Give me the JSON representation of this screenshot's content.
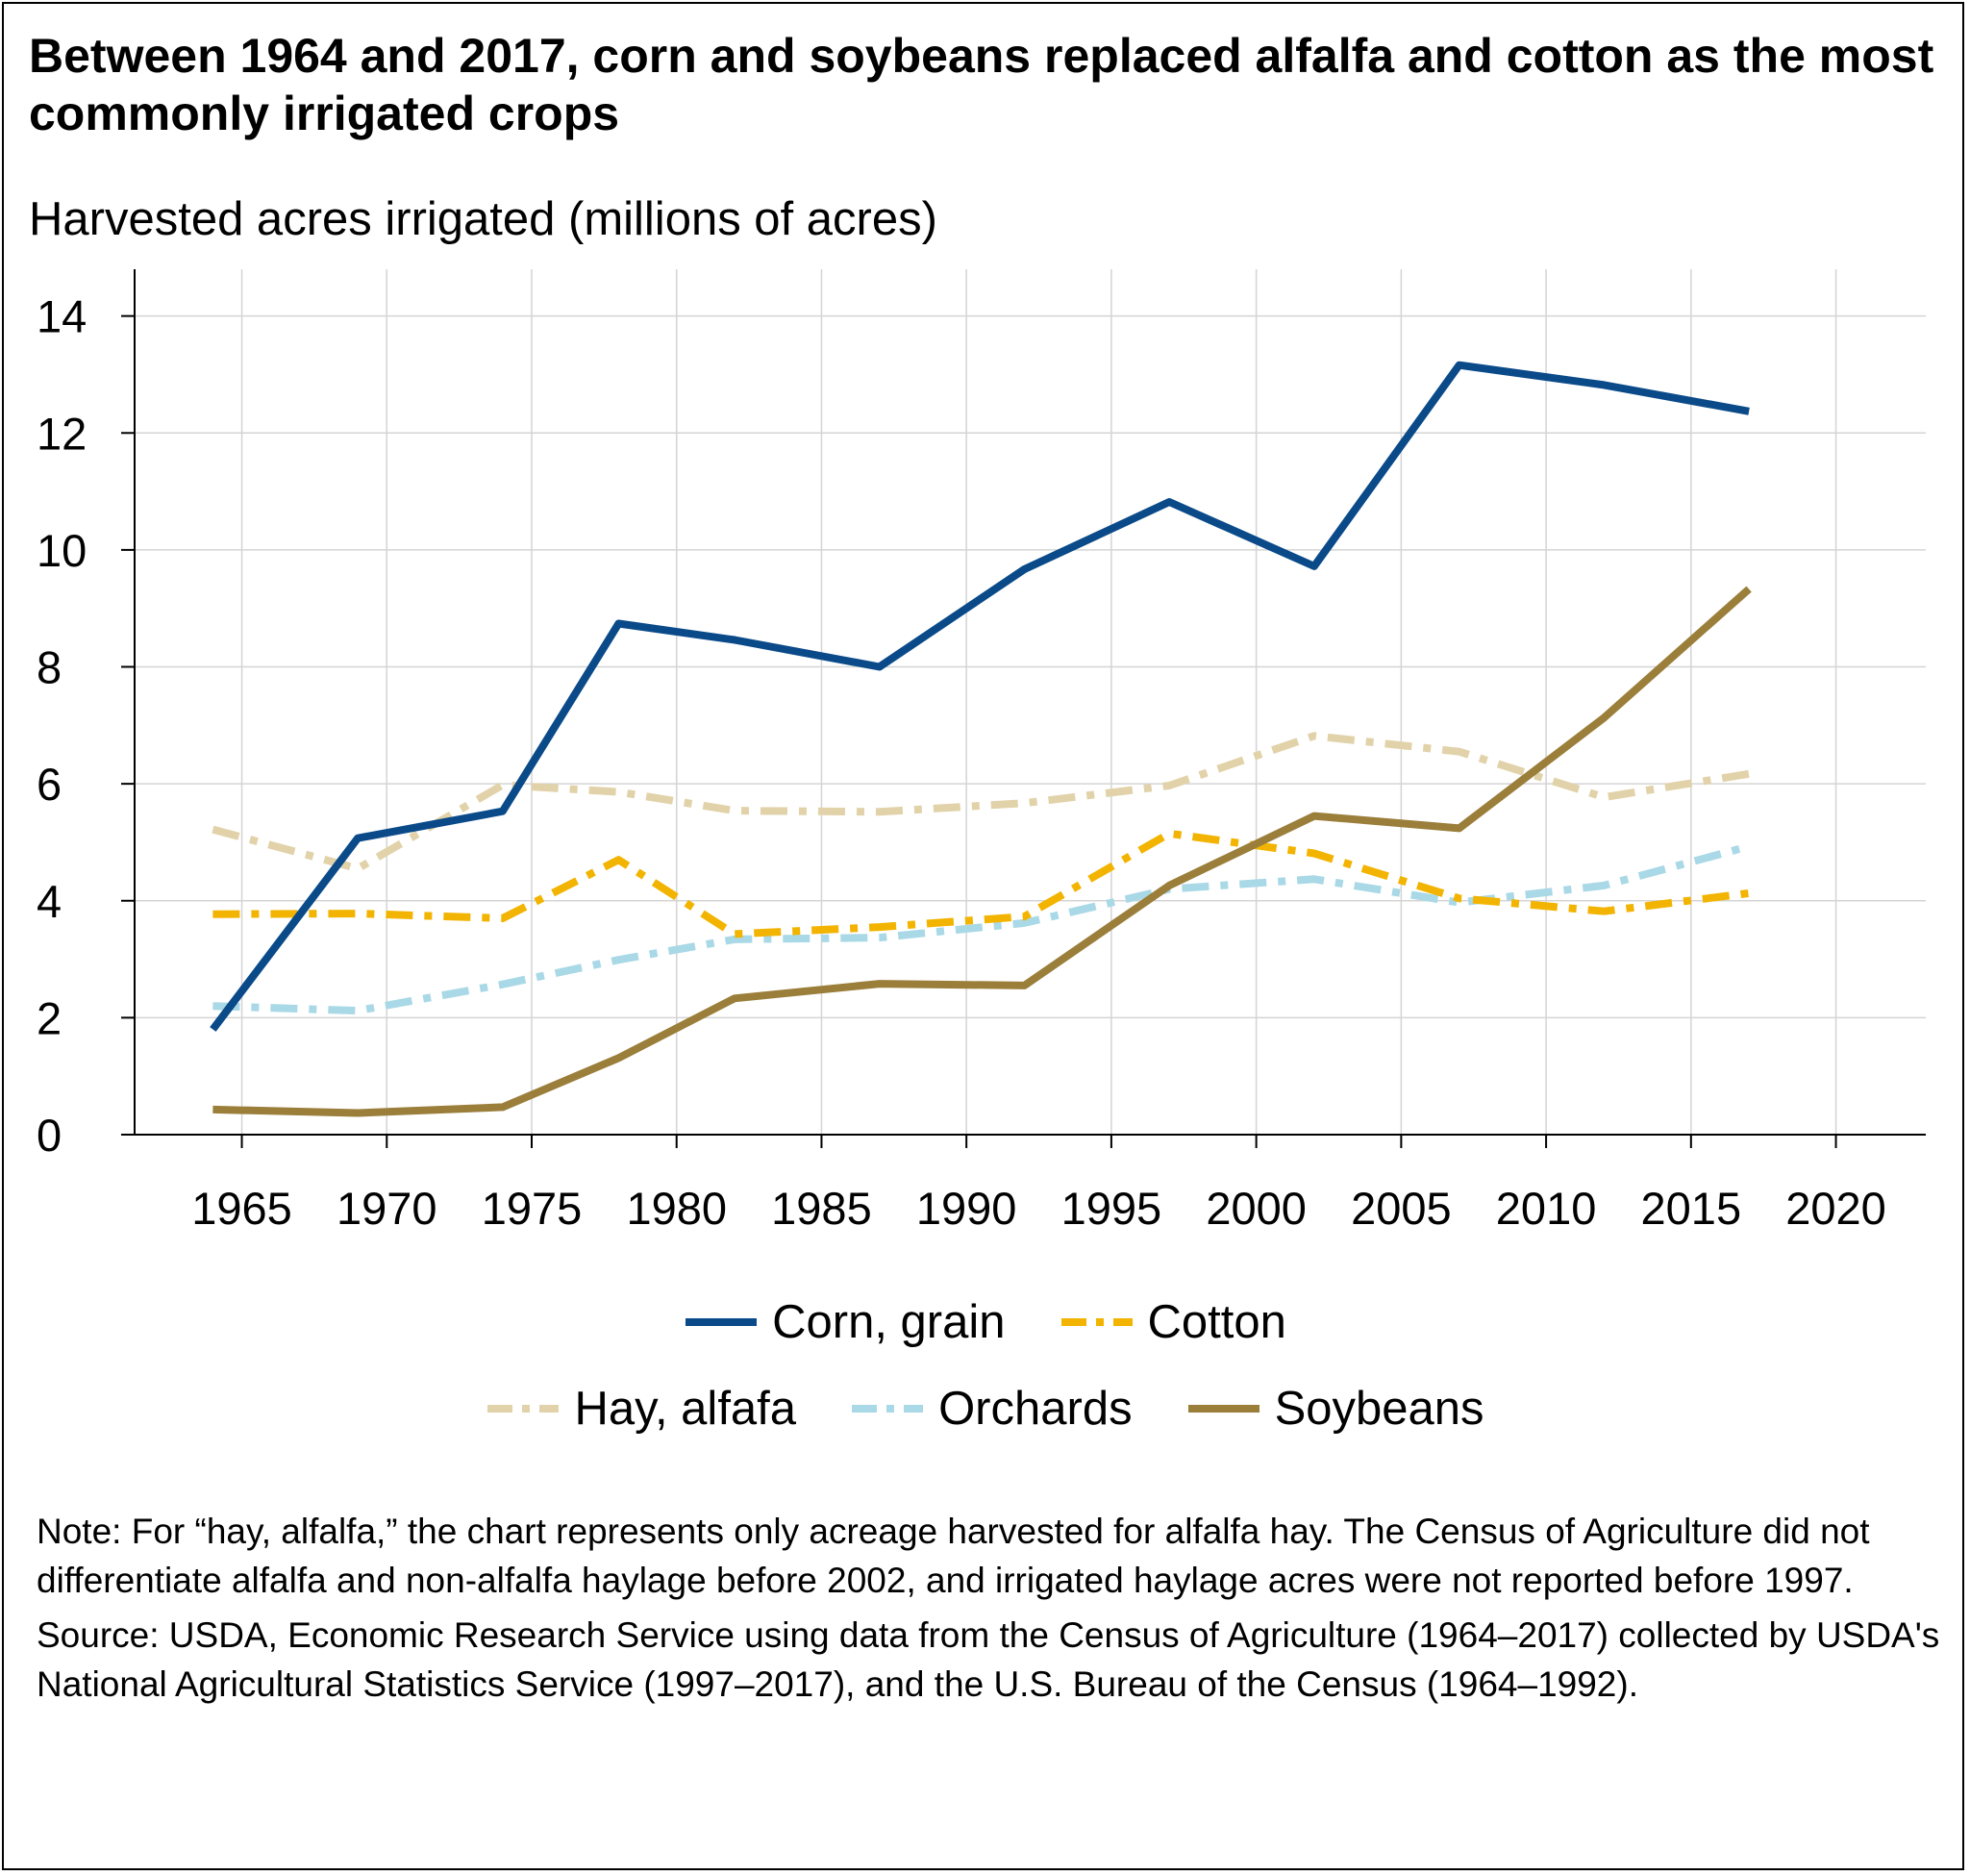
{
  "title": "Between 1964 and 2017, corn and soybeans replaced alfalfa and cotton as the most commonly irrigated crops",
  "ylabel": "Harvested acres irrigated (millions of acres)",
  "note": "Note: For “hay, alfalfa,” the chart represents only acreage harvested for alfalfa hay. The Census of Agriculture did not differentiate alfalfa and non-alfalfa haylage before 2002, and irrigated haylage acres were not reported before 1997.",
  "source": "Source: USDA, Economic Research Service using data from the Census of Agriculture (1964–2017) collected by USDA's National Agricultural Statistics Service (1997–2017), and the U.S. Bureau of the Census (1964–1992).",
  "chart_data": {
    "type": "line",
    "title": "Between 1964 and 2017, corn and soybeans replaced alfalfa and cotton as the most commonly irrigated crops",
    "ylabel": "Harvested acres irrigated (millions of acres)",
    "xlabel": "",
    "xlim": [
      1961.3,
      2023.1
    ],
    "ylim": [
      0,
      14.8
    ],
    "x_ticks": [
      1965,
      1970,
      1975,
      1980,
      1985,
      1990,
      1995,
      2000,
      2005,
      2010,
      2015,
      2020
    ],
    "y_ticks": [
      0,
      2,
      4,
      6,
      8,
      10,
      12,
      14
    ],
    "grid": true,
    "legend_position": "bottom",
    "x": [
      1964,
      1969,
      1974,
      1978,
      1982,
      1987,
      1992,
      1997,
      2002,
      2007,
      2012,
      2017
    ],
    "series": [
      {
        "name": "Corn, grain",
        "color": "#0a4a89",
        "dash": "solid",
        "values": [
          1.8,
          5.07,
          5.53,
          8.74,
          8.46,
          8.0,
          9.67,
          10.82,
          9.72,
          13.16,
          12.82,
          12.37
        ]
      },
      {
        "name": "Cotton",
        "color": "#f2b400",
        "dash": "dashdot",
        "values": [
          3.77,
          3.78,
          3.7,
          4.7,
          3.43,
          3.55,
          3.73,
          5.15,
          4.81,
          4.04,
          3.82,
          4.13
        ]
      },
      {
        "name": "Hay, alfafa",
        "color": "#e1d2a9",
        "dash": "dashdot",
        "values": [
          5.22,
          4.55,
          5.98,
          5.86,
          5.54,
          5.52,
          5.67,
          5.97,
          6.82,
          6.55,
          5.77,
          6.17
        ]
      },
      {
        "name": "Orchards",
        "color": "#a9d8e6",
        "dash": "dashdot",
        "values": [
          2.2,
          2.12,
          2.57,
          2.99,
          3.34,
          3.37,
          3.62,
          4.2,
          4.37,
          3.97,
          4.26,
          4.93
        ]
      },
      {
        "name": "Soybeans",
        "color": "#9a7e3a",
        "dash": "solid",
        "values": [
          0.43,
          0.37,
          0.47,
          1.31,
          2.33,
          2.58,
          2.55,
          4.26,
          5.45,
          5.24,
          7.13,
          9.33
        ]
      }
    ]
  }
}
